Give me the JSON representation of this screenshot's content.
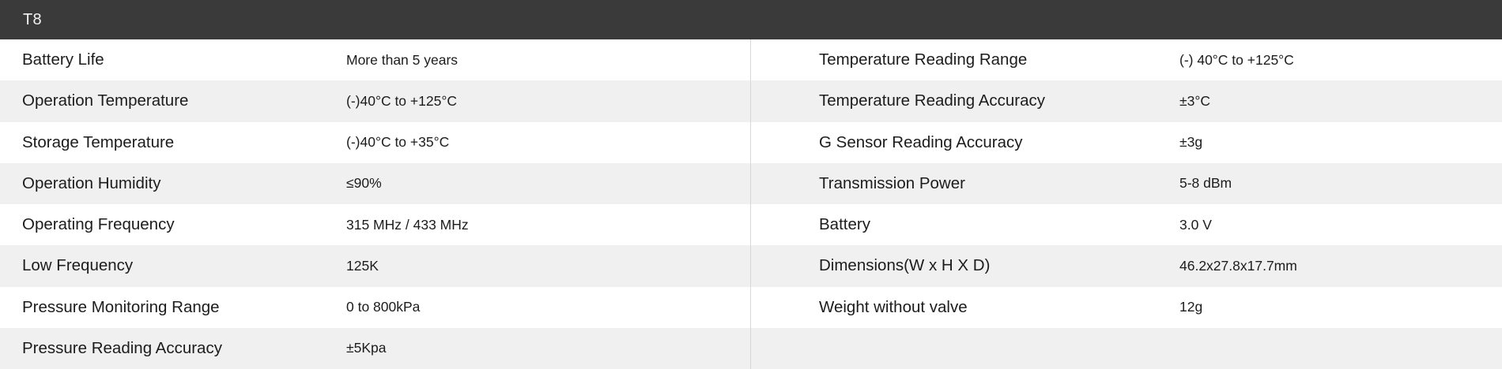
{
  "header": {
    "title": "T8"
  },
  "colors": {
    "header_bg": "#3a3a3a",
    "header_text": "#f2f2f2",
    "row_bg": "#ffffff",
    "row_alt_bg": "#f0f0f0",
    "divider": "#d8d8d8",
    "text": "#1c1c1c"
  },
  "left_table": {
    "rows": [
      {
        "label": "Battery Life",
        "value": "More than 5 years"
      },
      {
        "label": "Operation Temperature",
        "value": "(-)40°C to +125°C"
      },
      {
        "label": "Storage Temperature",
        "value": "(-)40°C to +35°C"
      },
      {
        "label": "Operation Humidity",
        "value": "≤90%"
      },
      {
        "label": "Operating Frequency",
        "value": "315 MHz / 433 MHz"
      },
      {
        "label": "Low Frequency",
        "value": "125K"
      },
      {
        "label": "Pressure Monitoring Range",
        "value": "0 to 800kPa"
      },
      {
        "label": "Pressure Reading Accuracy",
        "value": "±5Kpa"
      }
    ]
  },
  "right_table": {
    "rows": [
      {
        "label": "Temperature Reading Range",
        "value": "(-) 40°C to +125°C"
      },
      {
        "label": "Temperature Reading Accuracy",
        "value": "±3°C"
      },
      {
        "label": "G Sensor Reading Accuracy",
        "value": "±3g"
      },
      {
        "label": "Transmission Power",
        "value": "5-8 dBm"
      },
      {
        "label": "Battery",
        "value": "3.0 V"
      },
      {
        "label": "Dimensions(W x H X D)",
        "value": "46.2x27.8x17.7mm"
      },
      {
        "label": "Weight without valve",
        "value": "12g"
      },
      {
        "label": "",
        "value": ""
      }
    ]
  }
}
